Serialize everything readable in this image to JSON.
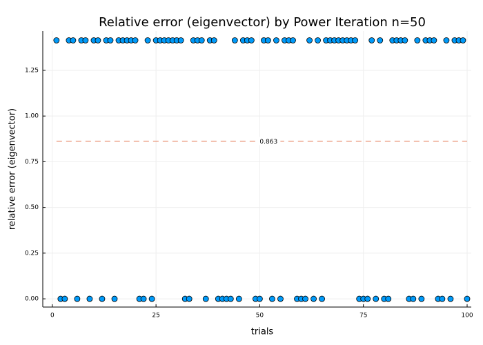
{
  "chart_data": {
    "type": "scatter",
    "title": "Relative error (eigenvector) by Power Iteration  n=50",
    "x_label": "trials",
    "y_label": "relative error (eigenvector)",
    "x": [
      1,
      2,
      3,
      4,
      5,
      6,
      7,
      8,
      9,
      10,
      11,
      12,
      13,
      14,
      15,
      16,
      17,
      18,
      19,
      20,
      21,
      22,
      23,
      24,
      25,
      26,
      27,
      28,
      29,
      30,
      31,
      32,
      33,
      34,
      35,
      36,
      37,
      38,
      39,
      40,
      41,
      42,
      43,
      44,
      45,
      46,
      47,
      48,
      49,
      50,
      51,
      52,
      53,
      54,
      55,
      56,
      57,
      58,
      59,
      60,
      61,
      62,
      63,
      64,
      65,
      66,
      67,
      68,
      69,
      70,
      71,
      72,
      73,
      74,
      75,
      76,
      77,
      78,
      79,
      80,
      81,
      82,
      83,
      84,
      85,
      86,
      87,
      88,
      89,
      90,
      91,
      92,
      93,
      94,
      95,
      96,
      97,
      98,
      99,
      100
    ],
    "values": [
      1.414,
      0,
      0,
      1.414,
      1.414,
      0,
      1.414,
      1.414,
      0,
      1.414,
      1.414,
      0,
      1.414,
      1.414,
      0,
      1.414,
      1.414,
      1.414,
      1.414,
      1.414,
      0,
      0,
      1.414,
      0,
      1.414,
      1.414,
      1.414,
      1.414,
      1.414,
      1.414,
      1.414,
      0,
      0,
      1.414,
      1.414,
      1.414,
      0,
      1.414,
      1.414,
      0,
      0,
      0,
      0,
      1.414,
      0,
      1.414,
      1.414,
      1.414,
      0,
      0,
      1.414,
      1.414,
      0,
      1.414,
      0,
      1.414,
      1.414,
      1.414,
      0,
      0,
      0,
      1.414,
      0,
      1.414,
      0,
      1.414,
      1.414,
      1.414,
      1.414,
      1.414,
      1.414,
      1.414,
      1.414,
      0,
      0,
      0,
      1.414,
      0,
      1.414,
      0,
      0,
      1.414,
      1.414,
      1.414,
      1.414,
      0,
      0,
      1.414,
      0,
      1.414,
      1.414,
      1.414,
      0,
      0,
      1.414,
      0,
      1.414,
      1.414,
      1.414,
      0
    ],
    "color": "#009af9",
    "hline": 0.863,
    "hline_color": "#e26f46",
    "xlim": [
      -2.3,
      101
    ],
    "xticks": [
      0,
      25,
      50,
      75,
      100
    ],
    "ylim": [
      -0.045,
      1.465
    ],
    "yticks": [
      {
        "value": 0,
        "label": "0.00"
      },
      {
        "value": 0.25,
        "label": "0.25"
      },
      {
        "value": 0.5,
        "label": "0.50"
      },
      {
        "value": 0.75,
        "label": "0.75"
      },
      {
        "value": 1,
        "label": "1.00"
      },
      {
        "value": 1.25,
        "label": "1.25"
      }
    ],
    "grid": true
  }
}
